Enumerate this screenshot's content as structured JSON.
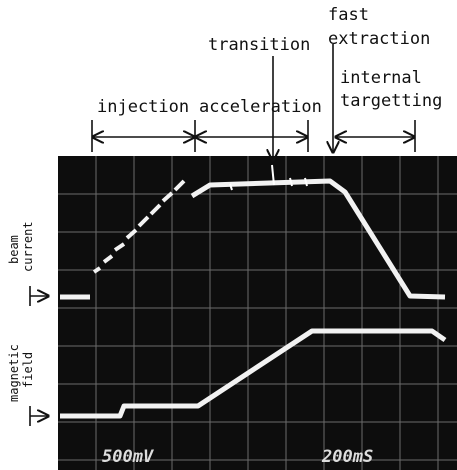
{
  "annotations": {
    "injection": "injection",
    "acceleration": "acceleration",
    "transition": "transition",
    "fast_extraction": [
      "fast",
      "extraction"
    ],
    "internal_targetting": [
      "internal",
      "targetting"
    ]
  },
  "side_labels": {
    "beam_current": [
      "beam",
      "current"
    ],
    "magnetic_field": [
      "magnetic",
      "field"
    ]
  },
  "readouts": {
    "volts": "500mV",
    "time": "200mS"
  }
}
